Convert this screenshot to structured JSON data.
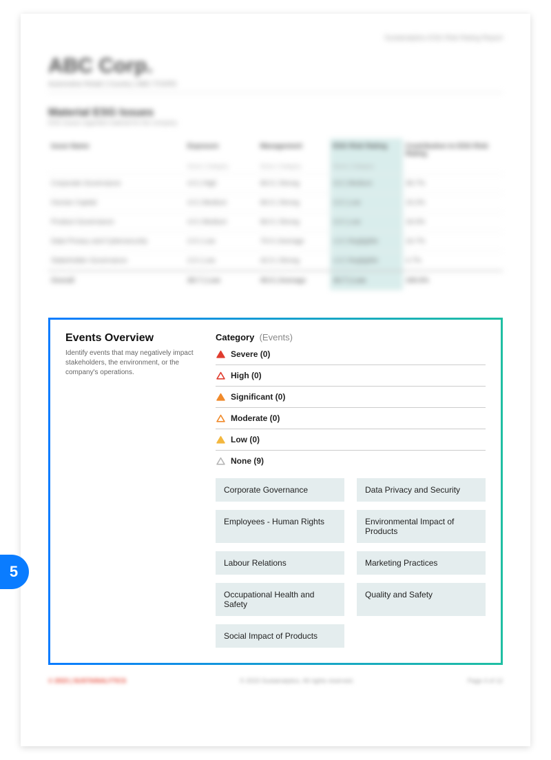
{
  "report_label": "Sustainalytics ESG Risk Rating Report",
  "company": {
    "name": "ABC Corp.",
    "meta": "Automotive Retail   |   Country   |   ABC:TCKRS"
  },
  "issues": {
    "title": "Material ESG Issues",
    "subtitle": "ESG issues regarded material for the company",
    "columns": [
      "Issue Name",
      "Exposure",
      "Management",
      "ESG Risk Rating",
      "Contribution to ESG Risk Rating"
    ],
    "subcolumns": [
      "",
      "Score | Category",
      "Score | Category",
      "Score | Category",
      ""
    ],
    "rows": [
      [
        "Corporate Governance",
        "4.0 | High",
        "66.5 | Strong",
        "3.0 | Medium",
        "39.7%"
      ],
      [
        "Human Capital",
        "4.0 | Medium",
        "66.0 | Strong",
        "2.0 | Low",
        "15.2%"
      ],
      [
        "Product Governance",
        "4.0 | Medium",
        "66.0 | Strong",
        "2.0 | Low",
        "18.3%"
      ],
      [
        "Data Privacy and Cybersecurity",
        "2.0 | Low",
        "70.0 | Average",
        "1.0 | Negligible",
        "16.7%"
      ],
      [
        "Stakeholder Governance",
        "2.0 | Low",
        "42.0 | Strong",
        "1.0 | Negligible",
        "4.7%"
      ]
    ],
    "total": [
      "Overall",
      "28.7 | Low",
      "45.0 | Average",
      "15.7 | Low",
      "100.0%"
    ]
  },
  "events": {
    "title": "Events Overview",
    "description": "Identify events that may negatively impact stakeholders, the environment, or the company's operations.",
    "header_label": "Category",
    "header_paren": "(Events)",
    "severities": [
      {
        "label": "Severe (0)",
        "fill": "#e03c2f",
        "stroke": "#e03c2f"
      },
      {
        "label": "High (0)",
        "fill": "none",
        "stroke": "#e03c2f"
      },
      {
        "label": "Significant (0)",
        "fill": "#f08a2b",
        "stroke": "#f08a2b"
      },
      {
        "label": "Moderate (0)",
        "fill": "none",
        "stroke": "#f08a2b"
      },
      {
        "label": "Low (0)",
        "fill": "#f3b73e",
        "stroke": "#f3b73e"
      },
      {
        "label": "None (9)",
        "fill": "none",
        "stroke": "#b7b7b7"
      }
    ],
    "none_items": [
      "Corporate Governance",
      "Data Privacy and Security",
      "Employees - Human Rights",
      "Environmental Impact of Products",
      "Labour Relations",
      "Marketing Practices",
      "Occupational Health and Safety",
      "Quality and Safety",
      "Social Impact of Products"
    ]
  },
  "callout_number": "5",
  "footer": {
    "left": "© 2023 | SUSTAINALYTICS",
    "center": "© 2023 Sustainalytics. All rights reserved.",
    "right": "Page 4 of 12"
  },
  "colors": {
    "highlight_border_start": "#0a7cff",
    "highlight_border_end": "#1fbfa3",
    "chip_bg": "#e4edee",
    "table_highlight": "#d9edec"
  }
}
